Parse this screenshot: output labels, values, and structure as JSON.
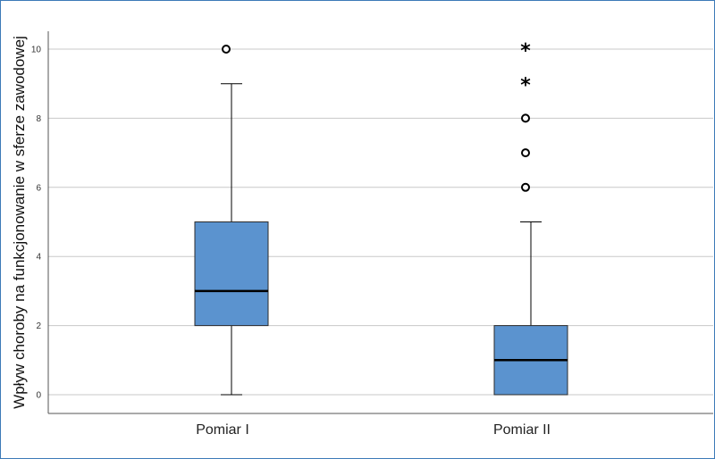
{
  "chart_data": {
    "type": "boxplot",
    "ylabel": "Wpływ choroby na funkcjonowanie w sferze zawodowej",
    "xlabel": "",
    "ylim": [
      0,
      10
    ],
    "yticks": [
      0,
      2,
      4,
      6,
      8,
      10
    ],
    "grid": true,
    "box_color": "#5b93cf",
    "categories": [
      "Pomiar I",
      "Pomiar II"
    ],
    "boxes": [
      {
        "category": "Pomiar I",
        "whisker_low": 0,
        "q1": 2,
        "median": 3,
        "q3": 5,
        "whisker_high": 9,
        "outliers": [
          10
        ],
        "extremes": []
      },
      {
        "category": "Pomiar II",
        "whisker_low": 0,
        "q1": 0,
        "median": 1,
        "q3": 2,
        "whisker_high": 5,
        "outliers": [
          6,
          7,
          8
        ],
        "extremes": [
          9,
          10
        ]
      }
    ]
  }
}
